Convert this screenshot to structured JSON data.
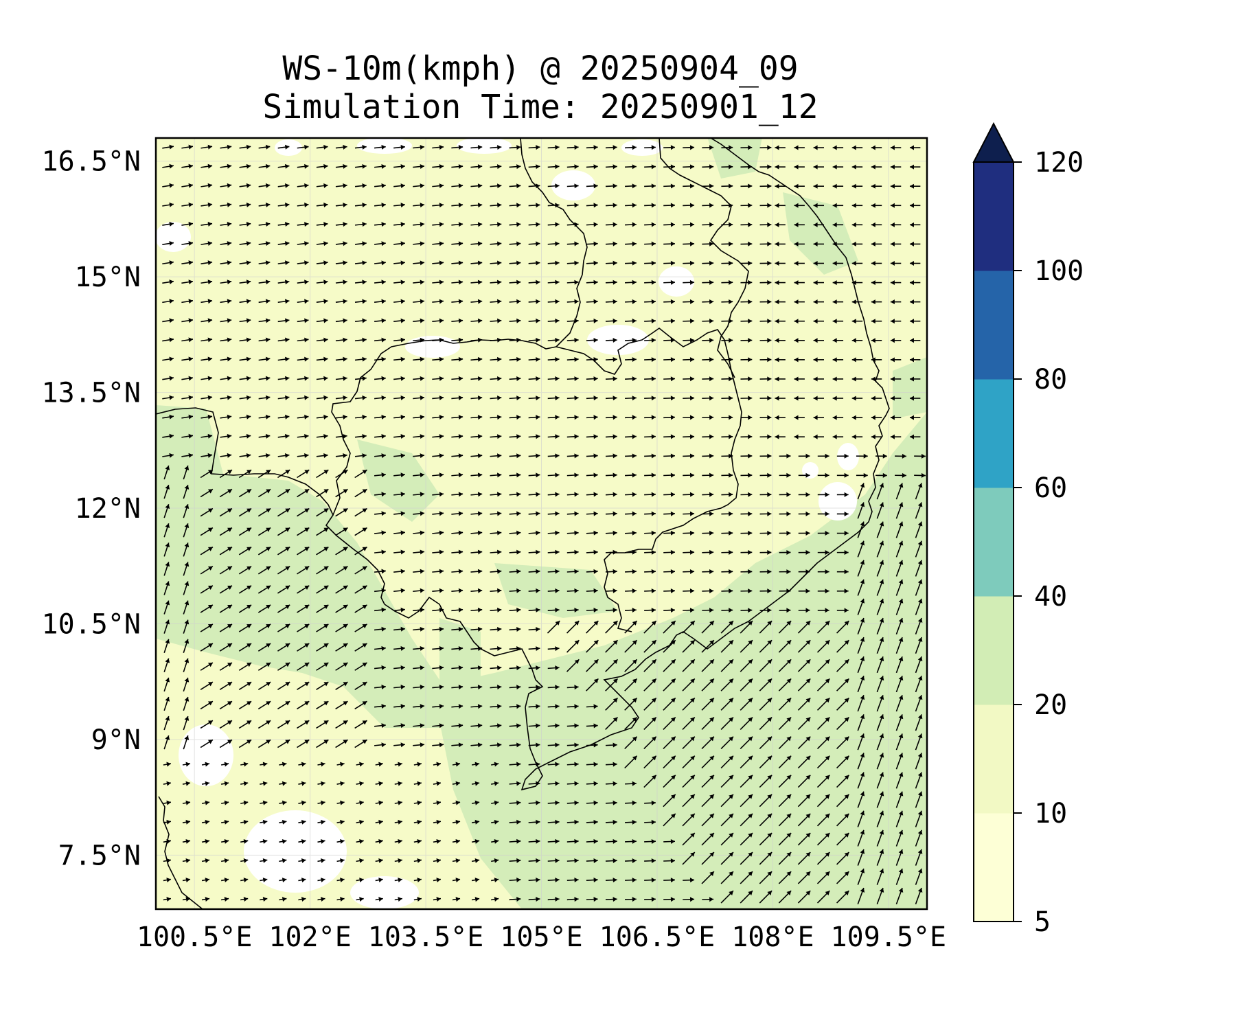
{
  "title": {
    "line1": "WS-10m(kmph) @ 20250904_09",
    "line2": "Simulation Time: 20250901_12"
  },
  "map": {
    "extent": {
      "lon": [
        100.0,
        110.0
      ],
      "lat": [
        6.8,
        16.8
      ]
    },
    "lon_ticks": [
      {
        "value": 100.5,
        "label": "100.5°E"
      },
      {
        "value": 102.0,
        "label": "102°E"
      },
      {
        "value": 103.5,
        "label": "103.5°E"
      },
      {
        "value": 105.0,
        "label": "105°E"
      },
      {
        "value": 106.5,
        "label": "106.5°E"
      },
      {
        "value": 108.0,
        "label": "108°E"
      },
      {
        "value": 109.5,
        "label": "109.5°E"
      }
    ],
    "lat_ticks": [
      {
        "value": 16.5,
        "label": "16.5°N"
      },
      {
        "value": 15.0,
        "label": "15°N"
      },
      {
        "value": 13.5,
        "label": "13.5°N"
      },
      {
        "value": 12.0,
        "label": "12°N"
      },
      {
        "value": 10.5,
        "label": "10.5°N"
      },
      {
        "value": 9.0,
        "label": "9°N"
      },
      {
        "value": 7.5,
        "label": "7.5°N"
      }
    ],
    "land_color": "#f6fbc8",
    "calm_color": "#ffffff",
    "strong_color": "#d4edb9"
  },
  "colorbar": {
    "levels": [
      {
        "value": 5,
        "label": "5"
      },
      {
        "value": 10,
        "label": "10"
      },
      {
        "value": 20,
        "label": "20"
      },
      {
        "value": 40,
        "label": "40"
      },
      {
        "value": 60,
        "label": "60"
      },
      {
        "value": 80,
        "label": "80"
      },
      {
        "value": 100,
        "label": "100"
      },
      {
        "value": 120,
        "label": "120"
      }
    ],
    "colors": [
      "#fdffd6",
      "#f2f9c4",
      "#d2edb5",
      "#7ecbbc",
      "#2fa3c6",
      "#2564a9",
      "#1f2e7f"
    ],
    "extend_color": "#0e1f4e"
  }
}
